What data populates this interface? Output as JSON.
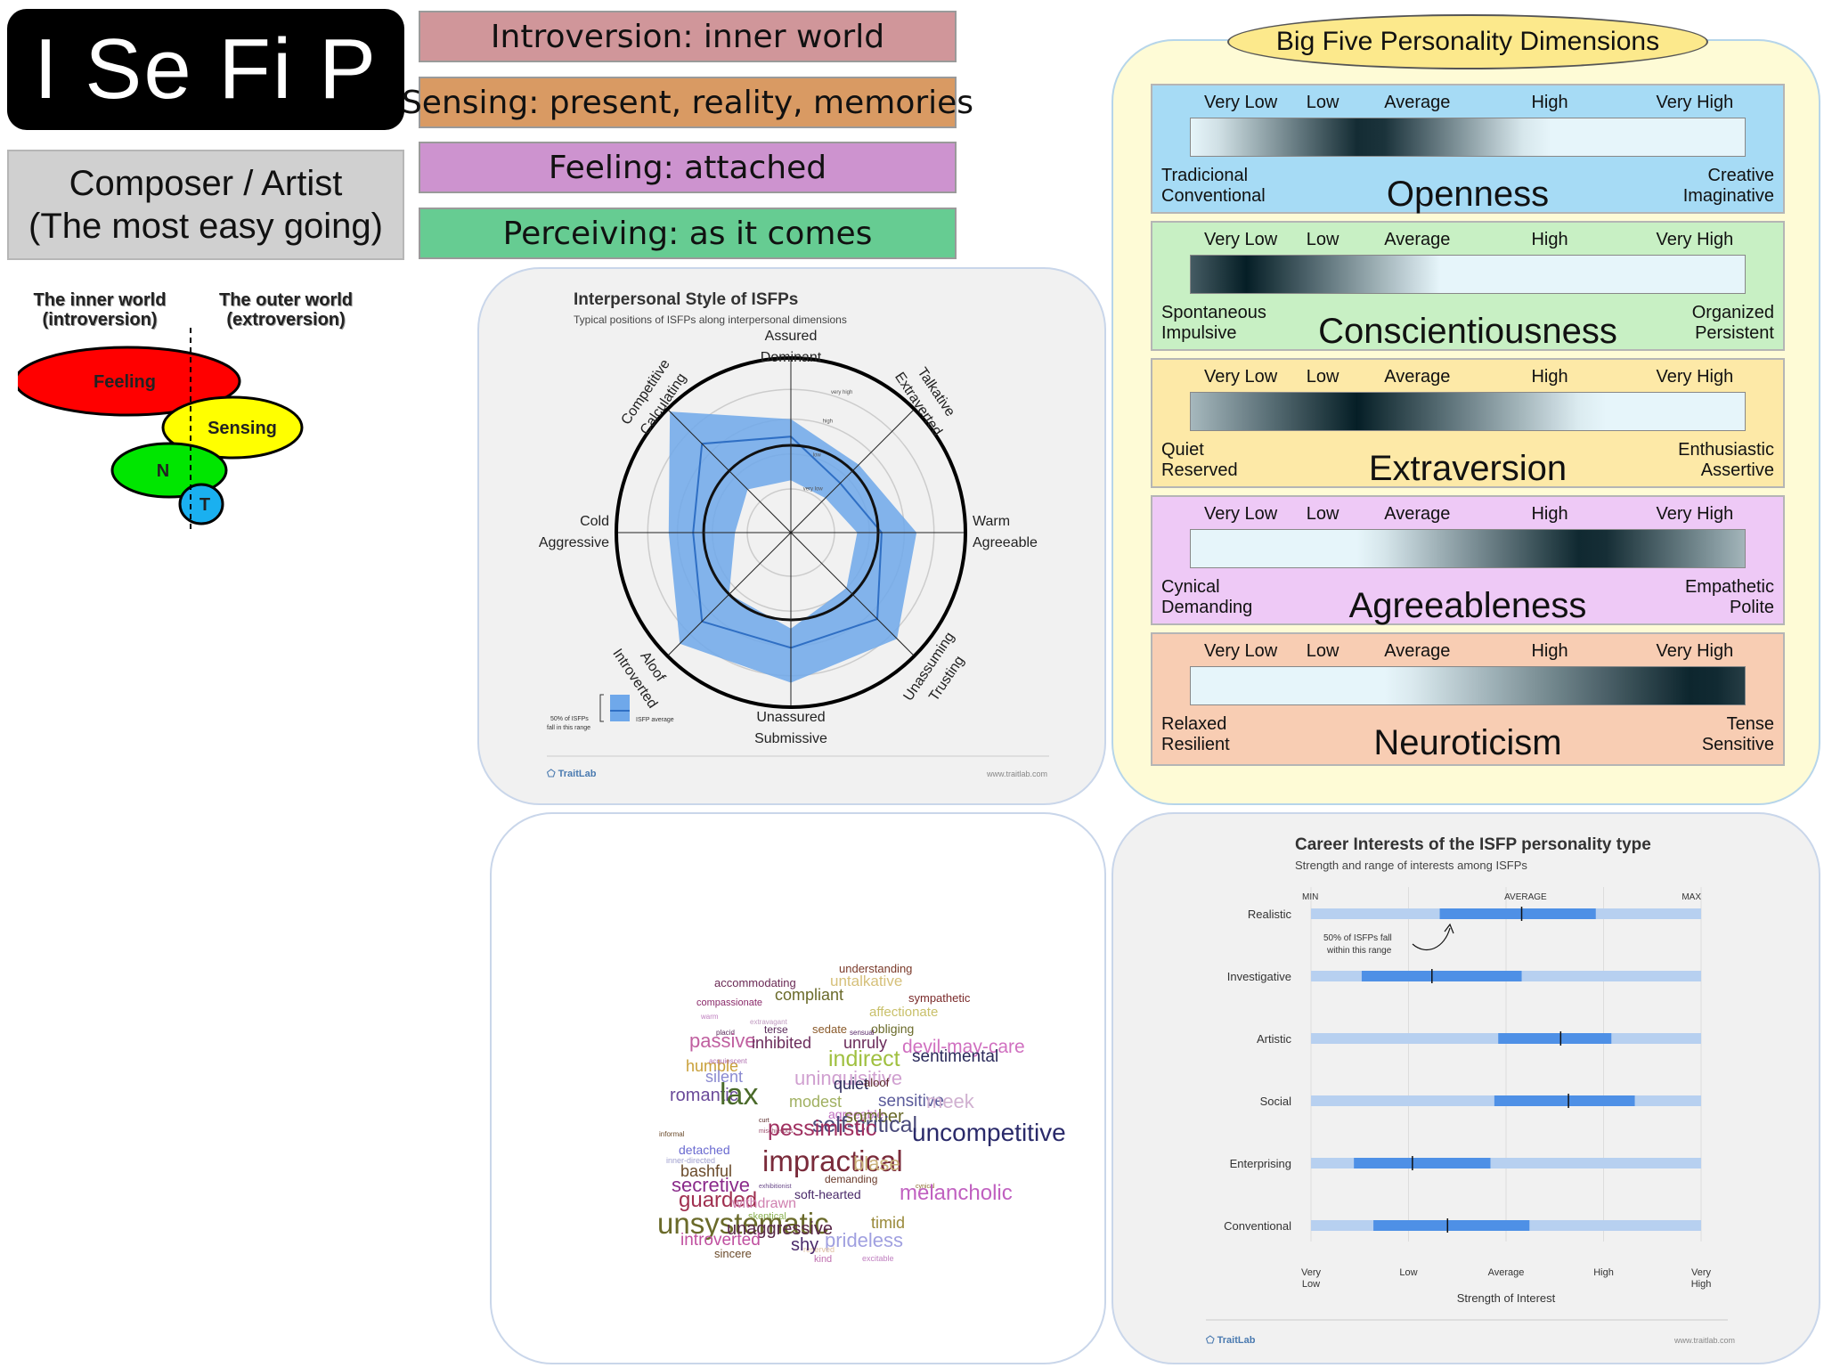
{
  "type_code": "I Se Fi P",
  "nickname": {
    "line1": "Composer / Artist",
    "line2": "(The most easy going)"
  },
  "dimensions": [
    {
      "label": "Introversion: inner world",
      "color": "#d0969a"
    },
    {
      "label": "Sensing: present, reality, memories",
      "color": "#d99a63"
    },
    {
      "label": "Feeling: attached",
      "color": "#cd93cf"
    },
    {
      "label": "Perceiving: as it comes",
      "color": "#66cc92"
    }
  ],
  "functions": {
    "inner_label": [
      "The inner world",
      "(introversion)"
    ],
    "outer_label": [
      "The outer world",
      "(extroversion)"
    ],
    "ellipses": [
      {
        "label": "Feeling",
        "color": "#ff0000"
      },
      {
        "label": "Sensing",
        "color": "#ffff00"
      },
      {
        "label": "N",
        "color": "#00e600"
      },
      {
        "label": "T",
        "color": "#1ab0f0"
      }
    ]
  },
  "interpersonal": {
    "title": "Interpersonal Style of ISFPs",
    "subtitle": "Typical positions of ISFPs along interpersonal dimensions",
    "axes": [
      {
        "line1": "Assured",
        "line2": "Dominant"
      },
      {
        "line1": "Talkative",
        "line2": "Extraverted"
      },
      {
        "line1": "Warm",
        "line2": "Agreeable"
      },
      {
        "line1": "Unassuming",
        "line2": "Trusting"
      },
      {
        "line1": "Unassured",
        "line2": "Submissive"
      },
      {
        "line1": "Aloof",
        "line2": "Introverted"
      },
      {
        "line1": "Cold",
        "line2": "Aggressive"
      },
      {
        "line1": "Competitive",
        "line2": "Calculating"
      }
    ],
    "ring_labels": [
      "very low",
      "low",
      "high",
      "very high"
    ],
    "range_outer": [
      0.65,
      0.55,
      0.72,
      0.86,
      0.86,
      0.9,
      0.7,
      0.98
    ],
    "range_inner": [
      0.3,
      0.28,
      0.38,
      0.45,
      0.55,
      0.5,
      0.32,
      0.35
    ],
    "average": [
      0.55,
      0.4,
      0.52,
      0.7,
      0.66,
      0.72,
      0.56,
      0.72
    ],
    "legend_range": [
      "50% of ISFPs",
      "fall in this range"
    ],
    "legend_avg": "ISFP average",
    "brand": "TraitLab",
    "url": "www.traitlab.com"
  },
  "big_five": {
    "title": "Big Five Personality Dimensions",
    "levels": [
      "Very Low",
      "Low",
      "Average",
      "High",
      "Very High"
    ],
    "traits": [
      {
        "name": "Openness",
        "low1": "Tradicional",
        "low2": "Conventional",
        "high1": "Creative",
        "high2": "Imaginative",
        "bg": "#a6dbf5",
        "peak": 0.32,
        "spread": 0.3
      },
      {
        "name": "Conscientiousness",
        "low1": "Spontaneous",
        "low2": "Impulsive",
        "high1": "Organized",
        "high2": "Persistent",
        "bg": "#c8f0c4",
        "peak": 0.1,
        "spread": 0.35
      },
      {
        "name": "Extraversion",
        "low1": "Quiet",
        "low2": "Reserved",
        "high1": "Enthusiastic",
        "high2": "Assertive",
        "bg": "#fde9a7",
        "peak": 0.3,
        "spread": 0.42
      },
      {
        "name": "Agreeableness",
        "low1": "Cynical",
        "low2": "Demanding",
        "high1": "Empathetic",
        "high2": "Polite",
        "bg": "#eec9f6",
        "peak": 0.72,
        "spread": 0.4
      },
      {
        "name": "Neuroticism",
        "low1": "Relaxed",
        "low2": "Resilient",
        "high1": "Tense",
        "high2": "Sensitive",
        "bg": "#f8cdb3",
        "peak": 0.92,
        "spread": 0.55
      }
    ]
  },
  "word_cloud": [
    {
      "t": "understanding",
      "c": "#7a3a2a",
      "s": 13
    },
    {
      "t": "accommodating",
      "c": "#6a2a55",
      "s": 13
    },
    {
      "t": "untalkative",
      "c": "#d6c07a",
      "s": 17
    },
    {
      "t": "sympathetic",
      "c": "#7a2a2a",
      "s": 13
    },
    {
      "t": "compassionate",
      "c": "#8a2a6a",
      "s": 11
    },
    {
      "t": "compliant",
      "c": "#6a6a2a",
      "s": 18
    },
    {
      "t": "affectionate",
      "c": "#c9c06a",
      "s": 15
    },
    {
      "t": "warm",
      "c": "#c080c0",
      "s": 8
    },
    {
      "t": "extravagant",
      "c": "#c09ac0",
      "s": 8
    },
    {
      "t": "obliging",
      "c": "#6a6a2a",
      "s": 14
    },
    {
      "t": "placid",
      "c": "#5a2a5a",
      "s": 8
    },
    {
      "t": "terse",
      "c": "#5a2a5a",
      "s": 12
    },
    {
      "t": "sedate",
      "c": "#8a5a2a",
      "s": 13
    },
    {
      "t": "unruly",
      "c": "#6a2a5a",
      "s": 18
    },
    {
      "t": "sensual",
      "c": "#5a2a6a",
      "s": 8
    },
    {
      "t": "passive",
      "c": "#c060a0",
      "s": 22
    },
    {
      "t": "inhibited",
      "c": "#6a2a5a",
      "s": 18
    },
    {
      "t": "devil-may-care",
      "c": "#d070c0",
      "s": 21
    },
    {
      "t": "humble",
      "c": "#c9a03a",
      "s": 18
    },
    {
      "t": "acquiescent",
      "c": "#b070b0",
      "s": 8
    },
    {
      "t": "indirect",
      "c": "#a0c040",
      "s": 25
    },
    {
      "t": "sentimental",
      "c": "#2a2a5a",
      "s": 19
    },
    {
      "t": "silent",
      "c": "#8a8ad0",
      "s": 18
    },
    {
      "t": "uninquisitive",
      "c": "#d0a0d0",
      "s": 22
    },
    {
      "t": "quiet",
      "c": "#2a2a5a",
      "s": 18
    },
    {
      "t": "aloof",
      "c": "#5a2a2a",
      "s": 13
    },
    {
      "t": "romantic",
      "c": "#6a4a9a",
      "s": 20
    },
    {
      "t": "lax",
      "c": "#4a6a2a",
      "s": 34
    },
    {
      "t": "modest",
      "c": "#a0b060",
      "s": 18
    },
    {
      "t": "sensitive",
      "c": "#5a5a9a",
      "s": 19
    },
    {
      "t": "meek",
      "c": "#d0b0d0",
      "s": 22
    },
    {
      "t": "agreeable",
      "c": "#c070c0",
      "s": 14
    },
    {
      "t": "curt",
      "c": "#5a2a2a",
      "s": 7
    },
    {
      "t": "somber",
      "c": "#6a6a2a",
      "s": 20
    },
    {
      "t": "self-critical",
      "c": "#4a4a7a",
      "s": 25
    },
    {
      "t": "informal",
      "c": "#6a4a2a",
      "s": 8
    },
    {
      "t": "pessimistic",
      "c": "#a03060",
      "s": 25
    },
    {
      "t": "uncompetitive",
      "c": "#2a2a6a",
      "s": 28
    },
    {
      "t": "detached",
      "c": "#6a6ad0",
      "s": 14
    },
    {
      "t": "inner-directed",
      "c": "#a0a0d0",
      "s": 9
    },
    {
      "t": "impractical",
      "c": "#7a2a3a",
      "s": 33
    },
    {
      "t": "blase",
      "c": "#c9b07a",
      "s": 22
    },
    {
      "t": "bashful",
      "c": "#6a4a2a",
      "s": 18
    },
    {
      "t": "exhibitionist",
      "c": "#6a4a8a",
      "s": 7
    },
    {
      "t": "demanding",
      "c": "#6a3a2a",
      "s": 12
    },
    {
      "t": "cynical",
      "c": "#8a6a2a",
      "s": 7
    },
    {
      "t": "secretive",
      "c": "#8a2a8a",
      "s": 22
    },
    {
      "t": "soft-hearted",
      "c": "#4a2a6a",
      "s": 14
    },
    {
      "t": "melancholic",
      "c": "#c060c0",
      "s": 24
    },
    {
      "t": "guarded",
      "c": "#a03050",
      "s": 24
    },
    {
      "t": "withdrawn",
      "c": "#d080b0",
      "s": 16
    },
    {
      "t": "skeptical",
      "c": "#8ab050",
      "s": 11
    },
    {
      "t": "timid",
      "c": "#9a8a3a",
      "s": 18
    },
    {
      "t": "unsystematic",
      "c": "#6a6a2a",
      "s": 33
    },
    {
      "t": "unaggressive",
      "c": "#5a2a4a",
      "s": 20
    },
    {
      "t": "introverted",
      "c": "#c050a0",
      "s": 19
    },
    {
      "t": "prideless",
      "c": "#a0a0e0",
      "s": 22
    },
    {
      "t": "excitable",
      "c": "#c080c0",
      "s": 9
    },
    {
      "t": "reserved",
      "c": "#e0c0a0",
      "s": 9
    },
    {
      "t": "shy",
      "c": "#4a2a6a",
      "s": 20
    },
    {
      "t": "sincere",
      "c": "#6a4a2a",
      "s": 13
    },
    {
      "t": "kind",
      "c": "#c070b0",
      "s": 11
    },
    {
      "t": "mischievous",
      "c": "#9a4a6a",
      "s": 7
    }
  ],
  "careers": {
    "title": "Career Interests of the ISFP personality type",
    "subtitle": "Strength and range of interests among ISFPs",
    "top_ticks": [
      "MIN",
      "AVERAGE",
      "MAX"
    ],
    "annotation": [
      "50% of ISFPs fall",
      "within this range"
    ],
    "rows": [
      {
        "label": "Realistic",
        "lo": 0.33,
        "hi": 0.73,
        "avg": 0.54
      },
      {
        "label": "Investigative",
        "lo": 0.13,
        "hi": 0.54,
        "avg": 0.31
      },
      {
        "label": "Artistic",
        "lo": 0.48,
        "hi": 0.77,
        "avg": 0.64
      },
      {
        "label": "Social",
        "lo": 0.47,
        "hi": 0.83,
        "avg": 0.66
      },
      {
        "label": "Enterprising",
        "lo": 0.11,
        "hi": 0.46,
        "avg": 0.26
      },
      {
        "label": "Conventional",
        "lo": 0.16,
        "hi": 0.56,
        "avg": 0.35
      }
    ],
    "bottom_ticks": [
      [
        "Very",
        "Low"
      ],
      [
        "Low",
        ""
      ],
      [
        "Average",
        ""
      ],
      [
        "High",
        ""
      ],
      [
        "Very",
        "High"
      ]
    ],
    "xlabel": "Strength of Interest",
    "brand": "TraitLab",
    "url": "www.traitlab.com"
  }
}
